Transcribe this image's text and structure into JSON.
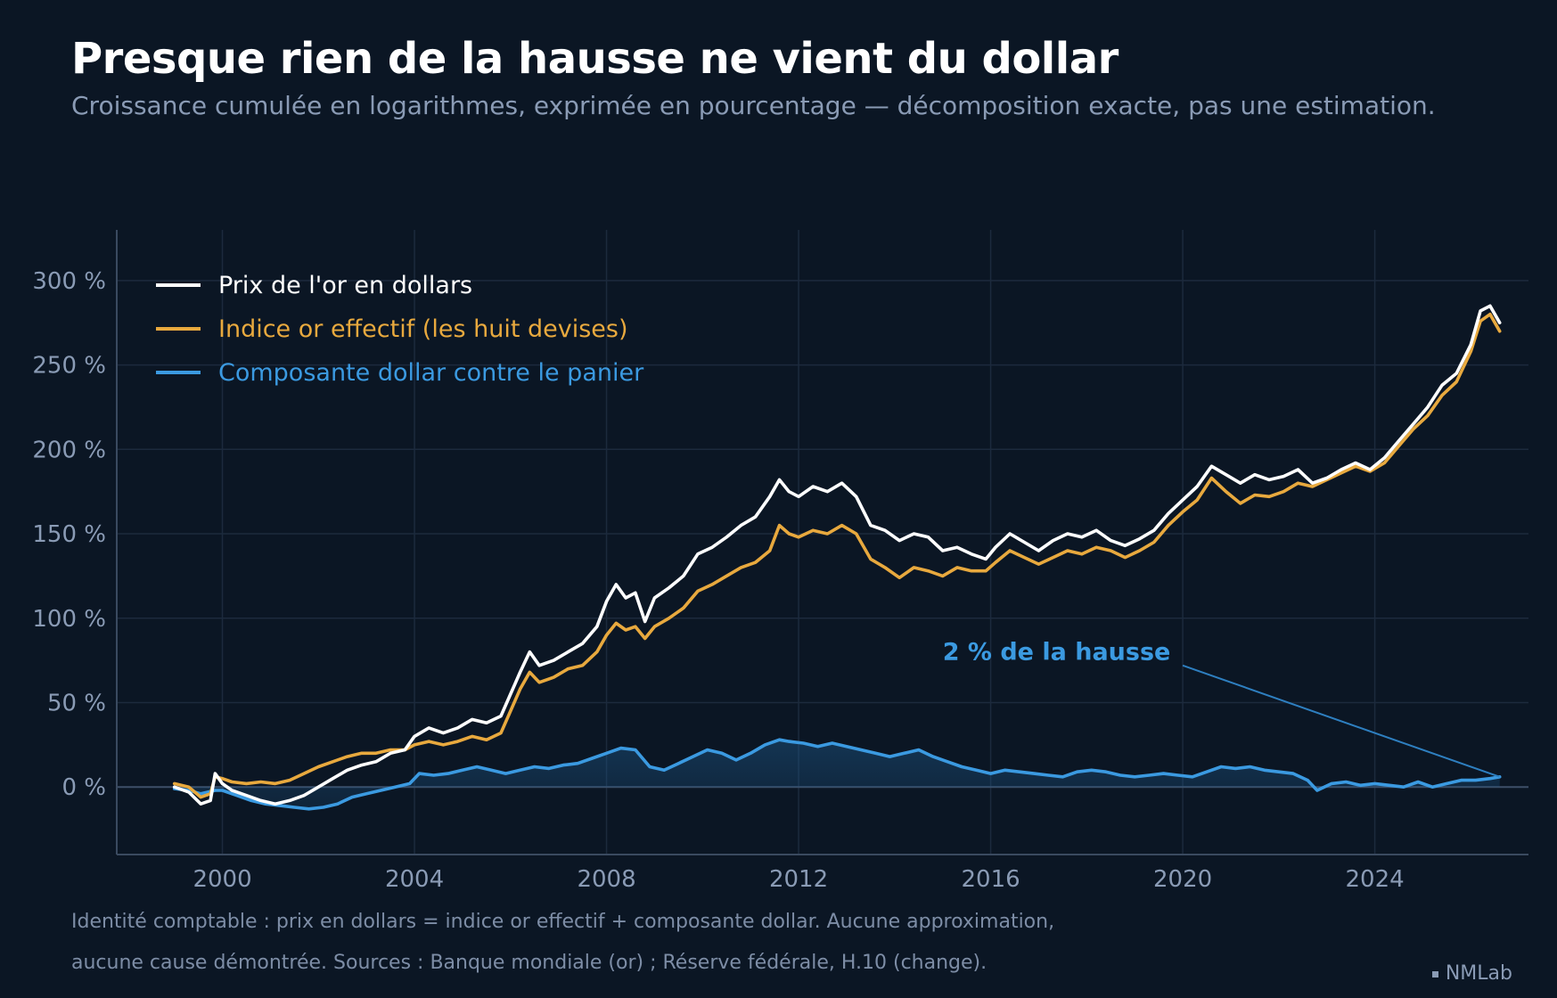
{
  "title": "Presque rien de la hausse ne vient du dollar",
  "subtitle": "Croissance cumulée en logarithmes, exprimée en pourcentage — décomposition exacte, pas une estimation.",
  "footnote": {
    "line1": "Identité comptable : prix en dollars = indice or effectif + composante dollar. Aucune approximation,",
    "line2": "aucune cause démontrée. Sources : Banque mondiale (or) ; Réserve fédérale, H.10 (change)."
  },
  "brand": "NMLab",
  "colors": {
    "background": "#0b1624",
    "grid": "#1c2a3d",
    "axis": "#3a4a60",
    "gold_usd": "#ffffff",
    "effective": "#e8a93e",
    "dollar": "#3b9ae1",
    "tick_text": "#8a9bb5"
  },
  "chart_data": {
    "type": "line",
    "title": "Presque rien de la hausse ne vient du dollar",
    "xlabel": "",
    "ylabel": "",
    "xlim": [
      1997.8,
      2027.2
    ],
    "ylim": [
      -40,
      330
    ],
    "x_ticks": [
      2000,
      2004,
      2008,
      2012,
      2016,
      2020,
      2024
    ],
    "x_tick_labels": [
      "2000",
      "2004",
      "2008",
      "2012",
      "2016",
      "2020",
      "2024"
    ],
    "y_ticks": [
      0,
      50,
      100,
      150,
      200,
      250,
      300
    ],
    "y_tick_labels": [
      "0 %",
      "50 %",
      "100 %",
      "150 %",
      "200 %",
      "250 %",
      "300 %"
    ],
    "grid": true,
    "legend_position": "top-left",
    "series": [
      {
        "name": "Prix de l'or en dollars",
        "color": "#ffffff",
        "points": [
          [
            1999.0,
            0
          ],
          [
            1999.3,
            -3
          ],
          [
            1999.55,
            -10
          ],
          [
            1999.75,
            -8
          ],
          [
            1999.85,
            8
          ],
          [
            2000.0,
            2
          ],
          [
            2000.2,
            -2
          ],
          [
            2000.5,
            -5
          ],
          [
            2000.8,
            -8
          ],
          [
            2001.1,
            -10
          ],
          [
            2001.4,
            -8
          ],
          [
            2001.7,
            -5
          ],
          [
            2002.0,
            0
          ],
          [
            2002.3,
            5
          ],
          [
            2002.6,
            10
          ],
          [
            2002.9,
            13
          ],
          [
            2003.2,
            15
          ],
          [
            2003.5,
            20
          ],
          [
            2003.8,
            22
          ],
          [
            2004.0,
            30
          ],
          [
            2004.3,
            35
          ],
          [
            2004.6,
            32
          ],
          [
            2004.9,
            35
          ],
          [
            2005.2,
            40
          ],
          [
            2005.5,
            38
          ],
          [
            2005.8,
            42
          ],
          [
            2006.0,
            55
          ],
          [
            2006.2,
            68
          ],
          [
            2006.4,
            80
          ],
          [
            2006.6,
            72
          ],
          [
            2006.9,
            75
          ],
          [
            2007.2,
            80
          ],
          [
            2007.5,
            85
          ],
          [
            2007.8,
            95
          ],
          [
            2008.0,
            110
          ],
          [
            2008.2,
            120
          ],
          [
            2008.4,
            112
          ],
          [
            2008.6,
            115
          ],
          [
            2008.8,
            98
          ],
          [
            2009.0,
            112
          ],
          [
            2009.3,
            118
          ],
          [
            2009.6,
            125
          ],
          [
            2009.9,
            138
          ],
          [
            2010.2,
            142
          ],
          [
            2010.5,
            148
          ],
          [
            2010.8,
            155
          ],
          [
            2011.1,
            160
          ],
          [
            2011.4,
            172
          ],
          [
            2011.6,
            182
          ],
          [
            2011.8,
            175
          ],
          [
            2012.0,
            172
          ],
          [
            2012.3,
            178
          ],
          [
            2012.6,
            175
          ],
          [
            2012.9,
            180
          ],
          [
            2013.2,
            172
          ],
          [
            2013.5,
            155
          ],
          [
            2013.8,
            152
          ],
          [
            2014.1,
            146
          ],
          [
            2014.4,
            150
          ],
          [
            2014.7,
            148
          ],
          [
            2015.0,
            140
          ],
          [
            2015.3,
            142
          ],
          [
            2015.6,
            138
          ],
          [
            2015.9,
            135
          ],
          [
            2016.1,
            142
          ],
          [
            2016.4,
            150
          ],
          [
            2016.7,
            145
          ],
          [
            2017.0,
            140
          ],
          [
            2017.3,
            146
          ],
          [
            2017.6,
            150
          ],
          [
            2017.9,
            148
          ],
          [
            2018.2,
            152
          ],
          [
            2018.5,
            146
          ],
          [
            2018.8,
            143
          ],
          [
            2019.1,
            147
          ],
          [
            2019.4,
            152
          ],
          [
            2019.7,
            162
          ],
          [
            2020.0,
            170
          ],
          [
            2020.3,
            178
          ],
          [
            2020.6,
            190
          ],
          [
            2020.9,
            185
          ],
          [
            2021.2,
            180
          ],
          [
            2021.5,
            185
          ],
          [
            2021.8,
            182
          ],
          [
            2022.1,
            184
          ],
          [
            2022.4,
            188
          ],
          [
            2022.7,
            180
          ],
          [
            2023.0,
            183
          ],
          [
            2023.3,
            188
          ],
          [
            2023.6,
            192
          ],
          [
            2023.9,
            188
          ],
          [
            2024.2,
            195
          ],
          [
            2024.5,
            205
          ],
          [
            2024.8,
            215
          ],
          [
            2025.1,
            225
          ],
          [
            2025.4,
            238
          ],
          [
            2025.7,
            245
          ],
          [
            2026.0,
            262
          ],
          [
            2026.2,
            282
          ],
          [
            2026.4,
            285
          ],
          [
            2026.6,
            275
          ]
        ]
      },
      {
        "name": "Indice or effectif (les huit devises)",
        "color": "#e8a93e",
        "points": [
          [
            1999.0,
            2
          ],
          [
            1999.3,
            0
          ],
          [
            1999.55,
            -6
          ],
          [
            1999.75,
            -4
          ],
          [
            1999.85,
            6
          ],
          [
            2000.0,
            5
          ],
          [
            2000.2,
            3
          ],
          [
            2000.5,
            2
          ],
          [
            2000.8,
            3
          ],
          [
            2001.1,
            2
          ],
          [
            2001.4,
            4
          ],
          [
            2001.7,
            8
          ],
          [
            2002.0,
            12
          ],
          [
            2002.3,
            15
          ],
          [
            2002.6,
            18
          ],
          [
            2002.9,
            20
          ],
          [
            2003.2,
            20
          ],
          [
            2003.5,
            22
          ],
          [
            2003.8,
            22
          ],
          [
            2004.0,
            25
          ],
          [
            2004.3,
            27
          ],
          [
            2004.6,
            25
          ],
          [
            2004.9,
            27
          ],
          [
            2005.2,
            30
          ],
          [
            2005.5,
            28
          ],
          [
            2005.8,
            32
          ],
          [
            2006.0,
            45
          ],
          [
            2006.2,
            58
          ],
          [
            2006.4,
            68
          ],
          [
            2006.6,
            62
          ],
          [
            2006.9,
            65
          ],
          [
            2007.2,
            70
          ],
          [
            2007.5,
            72
          ],
          [
            2007.8,
            80
          ],
          [
            2008.0,
            90
          ],
          [
            2008.2,
            97
          ],
          [
            2008.4,
            93
          ],
          [
            2008.6,
            95
          ],
          [
            2008.8,
            88
          ],
          [
            2009.0,
            95
          ],
          [
            2009.3,
            100
          ],
          [
            2009.6,
            106
          ],
          [
            2009.9,
            116
          ],
          [
            2010.2,
            120
          ],
          [
            2010.5,
            125
          ],
          [
            2010.8,
            130
          ],
          [
            2011.1,
            133
          ],
          [
            2011.4,
            140
          ],
          [
            2011.6,
            155
          ],
          [
            2011.8,
            150
          ],
          [
            2012.0,
            148
          ],
          [
            2012.3,
            152
          ],
          [
            2012.6,
            150
          ],
          [
            2012.9,
            155
          ],
          [
            2013.2,
            150
          ],
          [
            2013.5,
            135
          ],
          [
            2013.8,
            130
          ],
          [
            2014.1,
            124
          ],
          [
            2014.4,
            130
          ],
          [
            2014.7,
            128
          ],
          [
            2015.0,
            125
          ],
          [
            2015.3,
            130
          ],
          [
            2015.6,
            128
          ],
          [
            2015.9,
            128
          ],
          [
            2016.1,
            133
          ],
          [
            2016.4,
            140
          ],
          [
            2016.7,
            136
          ],
          [
            2017.0,
            132
          ],
          [
            2017.3,
            136
          ],
          [
            2017.6,
            140
          ],
          [
            2017.9,
            138
          ],
          [
            2018.2,
            142
          ],
          [
            2018.5,
            140
          ],
          [
            2018.8,
            136
          ],
          [
            2019.1,
            140
          ],
          [
            2019.4,
            145
          ],
          [
            2019.7,
            155
          ],
          [
            2020.0,
            163
          ],
          [
            2020.3,
            170
          ],
          [
            2020.6,
            183
          ],
          [
            2020.9,
            175
          ],
          [
            2021.2,
            168
          ],
          [
            2021.5,
            173
          ],
          [
            2021.8,
            172
          ],
          [
            2022.1,
            175
          ],
          [
            2022.4,
            180
          ],
          [
            2022.7,
            178
          ],
          [
            2023.0,
            182
          ],
          [
            2023.3,
            186
          ],
          [
            2023.6,
            190
          ],
          [
            2023.9,
            187
          ],
          [
            2024.2,
            192
          ],
          [
            2024.5,
            202
          ],
          [
            2024.8,
            212
          ],
          [
            2025.1,
            220
          ],
          [
            2025.4,
            232
          ],
          [
            2025.7,
            240
          ],
          [
            2026.0,
            258
          ],
          [
            2026.2,
            276
          ],
          [
            2026.4,
            280
          ],
          [
            2026.6,
            270
          ]
        ]
      },
      {
        "name": "Composante dollar contre le panier",
        "color": "#3b9ae1",
        "points": [
          [
            1999.0,
            -1
          ],
          [
            1999.3,
            -2
          ],
          [
            1999.55,
            -4
          ],
          [
            1999.85,
            -2
          ],
          [
            2000.0,
            -2
          ],
          [
            2000.3,
            -5
          ],
          [
            2000.6,
            -8
          ],
          [
            2000.9,
            -10
          ],
          [
            2001.2,
            -11
          ],
          [
            2001.5,
            -12
          ],
          [
            2001.8,
            -13
          ],
          [
            2002.1,
            -12
          ],
          [
            2002.4,
            -10
          ],
          [
            2002.7,
            -6
          ],
          [
            2003.0,
            -4
          ],
          [
            2003.3,
            -2
          ],
          [
            2003.6,
            0
          ],
          [
            2003.9,
            2
          ],
          [
            2004.1,
            8
          ],
          [
            2004.4,
            7
          ],
          [
            2004.7,
            8
          ],
          [
            2005.0,
            10
          ],
          [
            2005.3,
            12
          ],
          [
            2005.6,
            10
          ],
          [
            2005.9,
            8
          ],
          [
            2006.2,
            10
          ],
          [
            2006.5,
            12
          ],
          [
            2006.8,
            11
          ],
          [
            2007.1,
            13
          ],
          [
            2007.4,
            14
          ],
          [
            2007.7,
            17
          ],
          [
            2008.0,
            20
          ],
          [
            2008.3,
            23
          ],
          [
            2008.6,
            22
          ],
          [
            2008.9,
            12
          ],
          [
            2009.2,
            10
          ],
          [
            2009.5,
            14
          ],
          [
            2009.8,
            18
          ],
          [
            2010.1,
            22
          ],
          [
            2010.4,
            20
          ],
          [
            2010.7,
            16
          ],
          [
            2011.0,
            20
          ],
          [
            2011.3,
            25
          ],
          [
            2011.6,
            28
          ],
          [
            2011.8,
            27
          ],
          [
            2012.1,
            26
          ],
          [
            2012.4,
            24
          ],
          [
            2012.7,
            26
          ],
          [
            2013.0,
            24
          ],
          [
            2013.3,
            22
          ],
          [
            2013.6,
            20
          ],
          [
            2013.9,
            18
          ],
          [
            2014.2,
            20
          ],
          [
            2014.5,
            22
          ],
          [
            2014.8,
            18
          ],
          [
            2015.1,
            15
          ],
          [
            2015.4,
            12
          ],
          [
            2015.7,
            10
          ],
          [
            2016.0,
            8
          ],
          [
            2016.3,
            10
          ],
          [
            2016.6,
            9
          ],
          [
            2016.9,
            8
          ],
          [
            2017.2,
            7
          ],
          [
            2017.5,
            6
          ],
          [
            2017.8,
            9
          ],
          [
            2018.1,
            10
          ],
          [
            2018.4,
            9
          ],
          [
            2018.7,
            7
          ],
          [
            2019.0,
            6
          ],
          [
            2019.3,
            7
          ],
          [
            2019.6,
            8
          ],
          [
            2019.9,
            7
          ],
          [
            2020.2,
            6
          ],
          [
            2020.5,
            9
          ],
          [
            2020.8,
            12
          ],
          [
            2021.1,
            11
          ],
          [
            2021.4,
            12
          ],
          [
            2021.7,
            10
          ],
          [
            2022.0,
            9
          ],
          [
            2022.3,
            8
          ],
          [
            2022.6,
            4
          ],
          [
            2022.8,
            -2
          ],
          [
            2023.1,
            2
          ],
          [
            2023.4,
            3
          ],
          [
            2023.7,
            1
          ],
          [
            2024.0,
            2
          ],
          [
            2024.3,
            1
          ],
          [
            2024.6,
            0
          ],
          [
            2024.9,
            3
          ],
          [
            2025.2,
            0
          ],
          [
            2025.5,
            2
          ],
          [
            2025.8,
            4
          ],
          [
            2026.1,
            4
          ],
          [
            2026.4,
            5
          ],
          [
            2026.6,
            6
          ]
        ]
      }
    ],
    "annotation": {
      "text": "2 % de la hausse",
      "text_x": 2015.0,
      "text_y": 80,
      "arrow_from": [
        2020.0,
        72
      ],
      "arrow_to": [
        2026.6,
        6
      ]
    }
  }
}
